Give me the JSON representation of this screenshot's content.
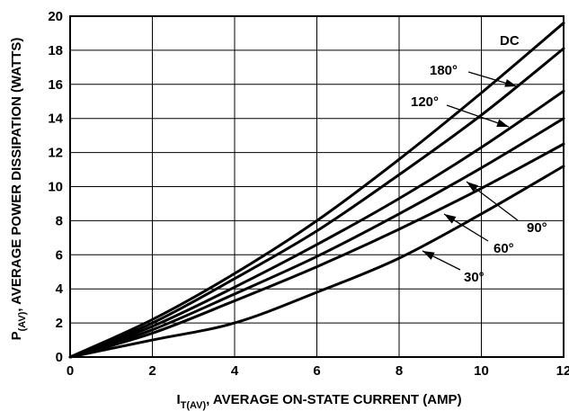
{
  "chart_data": {
    "type": "line",
    "xlabel": {
      "main": "I",
      "sub": "T(AV)",
      "rest": ", AVERAGE ON-STATE CURRENT (AMP)"
    },
    "ylabel": {
      "main": "P",
      "sub": "(AV)",
      "rest": ", AVERAGE POWER DISSIPATION (WATTS)"
    },
    "xlim": [
      0,
      12
    ],
    "ylim": [
      0,
      20
    ],
    "x_ticks": [
      0,
      2,
      4,
      6,
      8,
      10,
      12
    ],
    "y_ticks": [
      0,
      2,
      4,
      6,
      8,
      10,
      12,
      14,
      16,
      18,
      20
    ],
    "grid": true,
    "x": [
      0,
      2,
      4,
      6,
      8,
      10,
      12
    ],
    "series": [
      {
        "name": "DC",
        "values": [
          0,
          2.2,
          4.9,
          8.0,
          11.6,
          15.5,
          19.6
        ]
      },
      {
        "name": "180°",
        "values": [
          0,
          2.0,
          4.6,
          7.4,
          10.7,
          14.2,
          18.1
        ]
      },
      {
        "name": "120°",
        "values": [
          0,
          1.8,
          4.1,
          6.6,
          9.3,
          12.3,
          15.6
        ]
      },
      {
        "name": "90°",
        "values": [
          0,
          1.6,
          3.7,
          5.9,
          8.4,
          11.1,
          14.0
        ]
      },
      {
        "name": "60°",
        "values": [
          0,
          1.4,
          3.3,
          5.3,
          7.5,
          9.9,
          12.5
        ]
      },
      {
        "name": "30°",
        "values": [
          0,
          1.0,
          2.0,
          3.8,
          5.8,
          8.4,
          11.2
        ]
      }
    ],
    "annotations": [
      {
        "text": "DC"
      },
      {
        "text": "180°"
      },
      {
        "text": "120°"
      },
      {
        "text": "90°"
      },
      {
        "text": "60°"
      },
      {
        "text": "30°"
      }
    ]
  }
}
